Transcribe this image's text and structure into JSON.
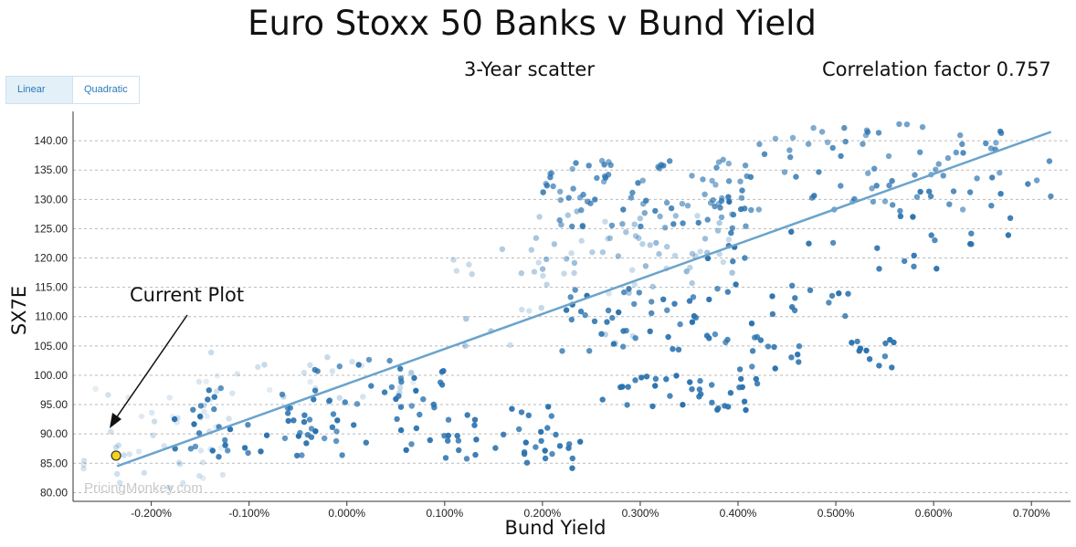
{
  "chart_data": {
    "type": "scatter",
    "title": "Euro Stoxx 50 Banks v Bund Yield",
    "subtitle": "3-Year scatter",
    "correlation_text": "Correlation factor 0.757",
    "xlabel": "Bund Yield",
    "ylabel": "SX7E",
    "xlim": [
      -0.28,
      0.74
    ],
    "ylim": [
      78.5,
      145
    ],
    "x_ticks": [
      -0.2,
      -0.1,
      0.0,
      0.1,
      0.2,
      0.3,
      0.4,
      0.5,
      0.6,
      0.7
    ],
    "x_tick_labels": [
      "-0.200%",
      "-0.100%",
      "0.000%",
      "0.100%",
      "0.200%",
      "0.300%",
      "0.400%",
      "0.500%",
      "0.600%",
      "0.700%"
    ],
    "y_ticks": [
      80,
      85,
      90,
      95,
      100,
      105,
      110,
      115,
      120,
      125,
      130,
      135,
      140
    ],
    "y_tick_labels": [
      "80.00",
      "85.00",
      "90.00",
      "95.00",
      "100.00",
      "105.00",
      "110.00",
      "115.00",
      "120.00",
      "125.00",
      "130.00",
      "135.00",
      "140.00"
    ],
    "grid": true,
    "trendline": {
      "from": [
        -0.235,
        84.5
      ],
      "to": [
        0.72,
        141.5
      ]
    },
    "current_point": {
      "x": -0.236,
      "y": 86.3
    },
    "annotation": "Current Plot",
    "watermark": "PricingMonkey.com",
    "series_color": "#2a72ae",
    "trend_color": "#6aa3cc",
    "current_color": "#f2d41b",
    "clusters": [
      {
        "x": [
          -0.27,
          -0.12
        ],
        "y": [
          79,
          99
        ],
        "n": 45,
        "o": [
          0.12,
          0.25
        ]
      },
      {
        "x": [
          -0.2,
          0.0
        ],
        "y": [
          86,
          98
        ],
        "n": 45,
        "o": [
          0.7,
          1.0
        ]
      },
      {
        "x": [
          -0.05,
          0.1
        ],
        "y": [
          88,
          104
        ],
        "n": 40,
        "o": [
          0.7,
          1.0
        ]
      },
      {
        "x": [
          0.05,
          0.22
        ],
        "y": [
          85,
          95
        ],
        "n": 35,
        "o": [
          0.8,
          1.0
        ]
      },
      {
        "x": [
          0.18,
          0.24
        ],
        "y": [
          84,
          92
        ],
        "n": 12,
        "o": [
          0.85,
          1.0
        ]
      },
      {
        "x": [
          0.26,
          0.42
        ],
        "y": [
          94,
          100
        ],
        "n": 35,
        "o": [
          0.8,
          1.0
        ]
      },
      {
        "x": [
          0.4,
          0.57
        ],
        "y": [
          101,
          107
        ],
        "n": 22,
        "o": [
          0.75,
          1.0
        ]
      },
      {
        "x": [
          0.22,
          0.45
        ],
        "y": [
          104,
          116
        ],
        "n": 55,
        "o": [
          0.75,
          1.0
        ]
      },
      {
        "x": [
          0.45,
          0.52
        ],
        "y": [
          110,
          116
        ],
        "n": 10,
        "o": [
          0.8,
          1.0
        ]
      },
      {
        "x": [
          0.18,
          0.4
        ],
        "y": [
          115,
          128
        ],
        "n": 50,
        "o": [
          0.25,
          0.5
        ]
      },
      {
        "x": [
          0.2,
          0.42
        ],
        "y": [
          125,
          137
        ],
        "n": 90,
        "o": [
          0.55,
          0.85
        ]
      },
      {
        "x": [
          0.42,
          0.72
        ],
        "y": [
          128,
          143
        ],
        "n": 70,
        "o": [
          0.55,
          0.85
        ]
      },
      {
        "x": [
          0.35,
          0.68
        ],
        "y": [
          118,
          132
        ],
        "n": 35,
        "o": [
          0.8,
          1.0
        ]
      },
      {
        "x": [
          0.1,
          0.3
        ],
        "y": [
          105,
          122
        ],
        "n": 25,
        "o": [
          0.2,
          0.4
        ]
      },
      {
        "x": [
          -0.15,
          0.08
        ],
        "y": [
          96,
          104
        ],
        "n": 25,
        "o": [
          0.12,
          0.3
        ]
      }
    ]
  }
}
